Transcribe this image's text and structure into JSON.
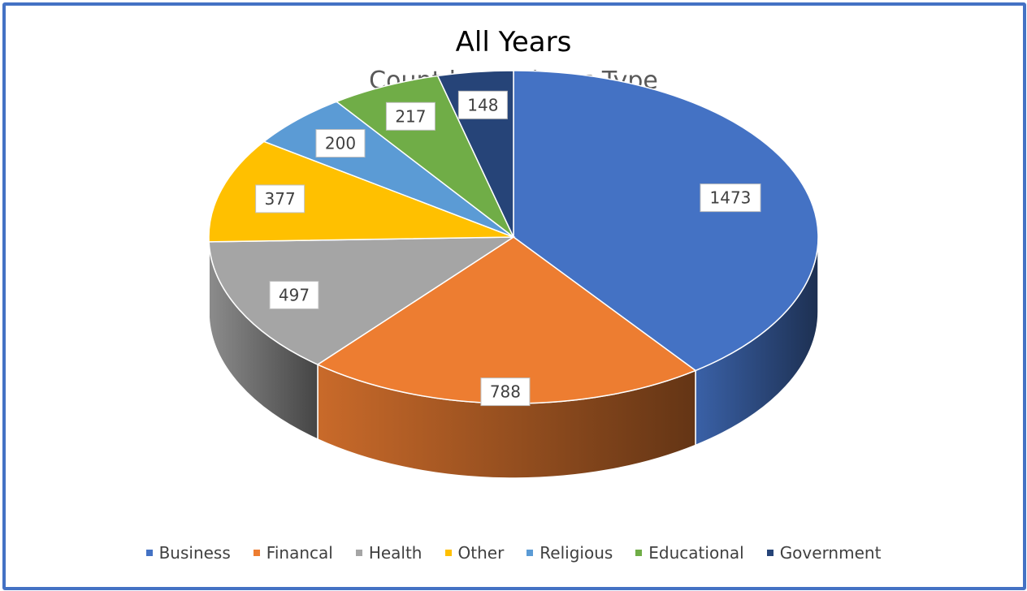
{
  "chart_data": {
    "type": "pie",
    "title": "All Years",
    "subtitle": "Count by Business Type",
    "categories": [
      "Business",
      "Financal",
      "Health",
      "Other",
      "Religious",
      "Educational",
      "Government"
    ],
    "values": [
      1473,
      788,
      497,
      377,
      200,
      217,
      148
    ],
    "colors": [
      "#4472c4",
      "#ed7d31",
      "#a5a5a5",
      "#ffc000",
      "#5b9bd5",
      "#70ad47",
      "#264478"
    ],
    "data_labels": [
      "1473",
      "788",
      "497",
      "377",
      "200",
      "217",
      "148"
    ],
    "style": "3d",
    "legend_position": "bottom"
  }
}
